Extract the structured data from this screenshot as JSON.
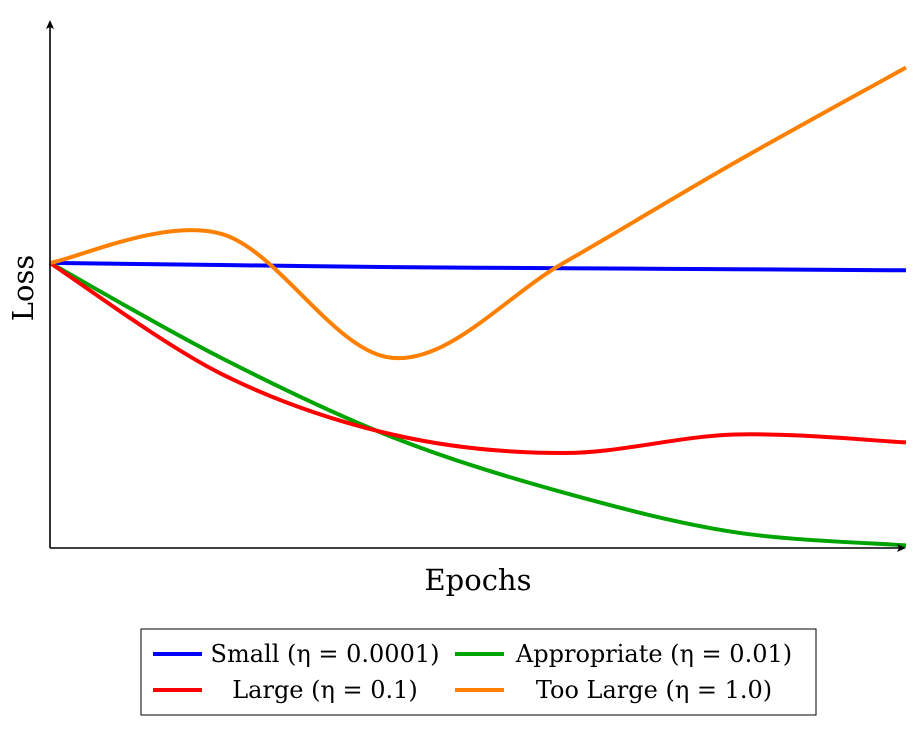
{
  "chart_data": {
    "type": "line",
    "xlabel": "Epochs",
    "ylabel": "Loss",
    "xlim": [
      0,
      10
    ],
    "ylim": [
      0,
      10
    ],
    "axis_ticks": false,
    "grid": false,
    "legend_placement": "bottom-center",
    "legend_columns": 2,
    "series": [
      {
        "name": "Small (η = 0.0001)",
        "color": "#0000ff",
        "x": [
          0,
          2,
          4,
          6,
          8,
          10
        ],
        "y": [
          5.4,
          5.36,
          5.32,
          5.3,
          5.28,
          5.26
        ]
      },
      {
        "name": "Appropriate (η = 0.01)",
        "color": "#00a400",
        "x": [
          0,
          2,
          4,
          6,
          8,
          10
        ],
        "y": [
          5.4,
          3.6,
          2.1,
          1.05,
          0.3,
          0.05
        ]
      },
      {
        "name": "Large (η = 0.1)",
        "color": "#ff0000",
        "x": [
          0,
          2,
          4,
          6,
          8,
          10
        ],
        "y": [
          5.4,
          3.3,
          2.15,
          1.8,
          2.15,
          2.0
        ]
      },
      {
        "name": "Too Large (η = 1.0)",
        "color": "#ff8000",
        "x": [
          0,
          2,
          4,
          6,
          8,
          10
        ],
        "y": [
          5.4,
          5.95,
          3.6,
          5.4,
          7.3,
          9.1
        ]
      }
    ]
  }
}
